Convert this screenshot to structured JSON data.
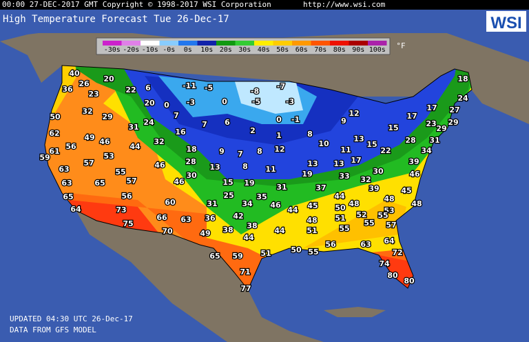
{
  "header": {
    "copyright": "00:00 27-DEC-2017 GMT Copyright © 1998-2017 WSI Corporation",
    "url": "http://www.wsi.com"
  },
  "title": "High Temperature Forecast  Tue 26-Dec-17",
  "logo": "WSI",
  "legend": {
    "labels": [
      "-30s",
      "-20s",
      "-10s",
      "-0s",
      "0s",
      "10s",
      "20s",
      "30s",
      "40s",
      "50s",
      "60s",
      "70s",
      "80s",
      "90s",
      "100s"
    ],
    "unit": "°F"
  },
  "temperatures": [
    "40",
    "20",
    "36",
    "26",
    "22",
    "6",
    "-11",
    "-5",
    "-8",
    "-7",
    "18",
    "23",
    "20",
    "0",
    "-3",
    "0",
    "-5",
    "-3",
    "24",
    "50",
    "32",
    "29",
    "7",
    "31",
    "24",
    "7",
    "6",
    "0",
    "-1",
    "12",
    "9",
    "17",
    "17",
    "27",
    "62",
    "16",
    "2",
    "1",
    "8",
    "15",
    "23",
    "29",
    "29",
    "49",
    "46",
    "44",
    "32",
    "10",
    "13",
    "15",
    "28",
    "31",
    "61",
    "56",
    "53",
    "18",
    "9",
    "7",
    "8",
    "12",
    "11",
    "22",
    "34",
    "59",
    "57",
    "46",
    "28",
    "13",
    "8",
    "11",
    "13",
    "13",
    "17",
    "39",
    "63",
    "55",
    "30",
    "19",
    "30",
    "46",
    "63",
    "65",
    "57",
    "46",
    "15",
    "19",
    "31",
    "37",
    "33",
    "32",
    "45",
    "65",
    "56",
    "39",
    "25",
    "35",
    "44",
    "48",
    "64",
    "60",
    "31",
    "34",
    "46",
    "44",
    "45",
    "50",
    "48",
    "53",
    "48",
    "73",
    "66",
    "63",
    "36",
    "42",
    "48",
    "51",
    "52",
    "55",
    "75",
    "38",
    "55",
    "57",
    "44",
    "51",
    "55",
    "70",
    "49",
    "38",
    "44",
    "56",
    "63",
    "64",
    "50",
    "55",
    "51",
    "72",
    "65",
    "59",
    "74",
    "71",
    "80",
    "80",
    "77"
  ],
  "footer": {
    "updated": "UPDATED 04:30 UTC 26-Dec-17",
    "source": "DATA FROM GFS MODEL"
  }
}
